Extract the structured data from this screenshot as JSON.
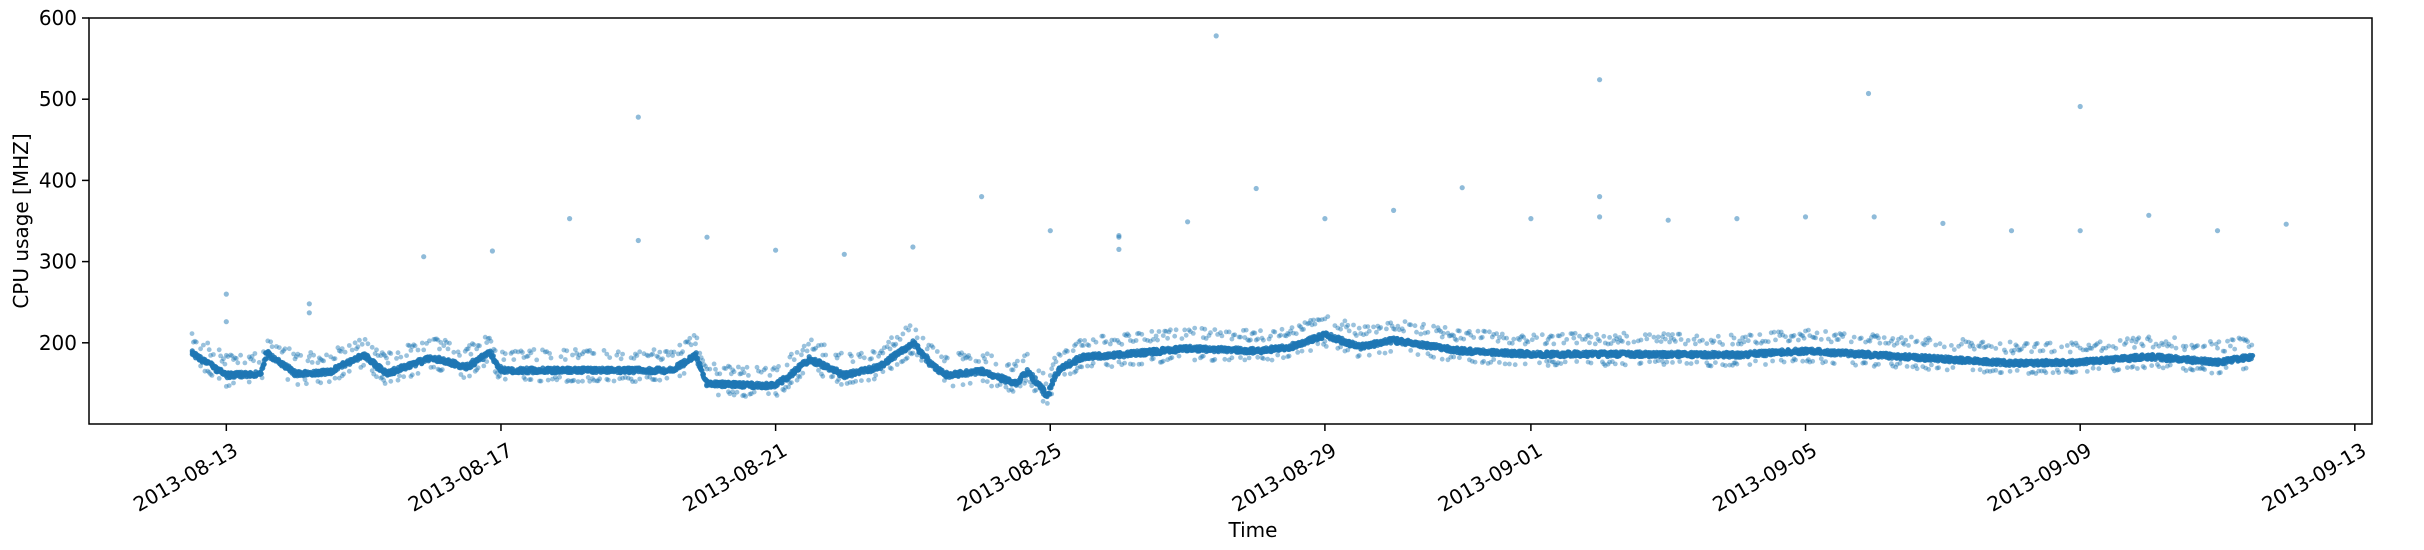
{
  "chart_data": {
    "type": "scatter",
    "title": "",
    "xlabel": "Time",
    "ylabel": "CPU usage [MHZ]",
    "xlim": [
      "2013-08-11T00:00",
      "2013-09-13T06:00"
    ],
    "ylim": [
      100,
      600
    ],
    "grid": false,
    "legend": "none",
    "x_ticks": [
      "2013-08-13",
      "2013-08-17",
      "2013-08-21",
      "2013-08-25",
      "2013-08-29",
      "2013-09-01",
      "2013-09-05",
      "2013-09-09",
      "2013-09-13"
    ],
    "y_ticks": [
      200,
      300,
      400,
      500,
      600
    ],
    "marker_color": "#1f77b4",
    "baseline_series": [
      [
        "2013-08-12T12:00",
        187
      ],
      [
        "2013-08-13T00:00",
        160
      ],
      [
        "2013-08-13T12:00",
        162
      ],
      [
        "2013-08-13T14:00",
        188
      ],
      [
        "2013-08-14T00:00",
        162
      ],
      [
        "2013-08-14T12:00",
        164
      ],
      [
        "2013-08-15T00:00",
        185
      ],
      [
        "2013-08-15T08:00",
        162
      ],
      [
        "2013-08-16T00:00",
        182
      ],
      [
        "2013-08-16T12:00",
        170
      ],
      [
        "2013-08-16T20:00",
        188
      ],
      [
        "2013-08-17T00:00",
        166
      ],
      [
        "2013-08-18T00:00",
        166
      ],
      [
        "2013-08-19T00:00",
        166
      ],
      [
        "2013-08-19T12:00",
        166
      ],
      [
        "2013-08-19T20:00",
        185
      ],
      [
        "2013-08-20T00:00",
        150
      ],
      [
        "2013-08-20T12:00",
        148
      ],
      [
        "2013-08-21T00:00",
        147
      ],
      [
        "2013-08-21T12:00",
        180
      ],
      [
        "2013-08-22T00:00",
        160
      ],
      [
        "2013-08-22T12:00",
        170
      ],
      [
        "2013-08-23T00:00",
        200
      ],
      [
        "2013-08-23T06:00",
        175
      ],
      [
        "2013-08-23T12:00",
        160
      ],
      [
        "2013-08-24T00:00",
        165
      ],
      [
        "2013-08-24T12:00",
        150
      ],
      [
        "2013-08-24T16:00",
        165
      ],
      [
        "2013-08-24T23:00",
        135
      ],
      [
        "2013-08-25T03:00",
        168
      ],
      [
        "2013-08-25T12:00",
        183
      ],
      [
        "2013-08-26T00:00",
        185
      ],
      [
        "2013-08-27T00:00",
        193
      ],
      [
        "2013-08-28T00:00",
        190
      ],
      [
        "2013-08-28T12:00",
        195
      ],
      [
        "2013-08-29T00:00",
        210
      ],
      [
        "2013-08-29T12:00",
        195
      ],
      [
        "2013-08-30T00:00",
        203
      ],
      [
        "2013-08-31T00:00",
        190
      ],
      [
        "2013-09-01T00:00",
        186
      ],
      [
        "2013-09-02T00:00",
        186
      ],
      [
        "2013-09-03T00:00",
        186
      ],
      [
        "2013-09-04T00:00",
        185
      ],
      [
        "2013-09-05T00:00",
        190
      ],
      [
        "2013-09-06T00:00",
        185
      ],
      [
        "2013-09-07T00:00",
        180
      ],
      [
        "2013-09-08T00:00",
        175
      ],
      [
        "2013-09-09T00:00",
        176
      ],
      [
        "2013-09-10T00:00",
        183
      ],
      [
        "2013-09-11T00:00",
        176
      ],
      [
        "2013-09-11T12:00",
        183
      ]
    ],
    "outliers": [
      [
        "2013-08-13T00:00",
        260
      ],
      [
        "2013-08-13T00:00",
        226
      ],
      [
        "2013-08-14T05:00",
        248
      ],
      [
        "2013-08-14T05:00",
        237
      ],
      [
        "2013-08-15T21:00",
        306
      ],
      [
        "2013-08-16T21:00",
        313
      ],
      [
        "2013-08-18T00:00",
        353
      ],
      [
        "2013-08-19T00:00",
        478
      ],
      [
        "2013-08-19T00:00",
        326
      ],
      [
        "2013-08-20T00:00",
        330
      ],
      [
        "2013-08-21T00:00",
        314
      ],
      [
        "2013-08-22T00:00",
        309
      ],
      [
        "2013-08-23T00:00",
        318
      ],
      [
        "2013-08-24T00:00",
        380
      ],
      [
        "2013-08-25T00:00",
        338
      ],
      [
        "2013-08-26T00:00",
        332
      ],
      [
        "2013-08-26T00:00",
        330
      ],
      [
        "2013-08-26T00:00",
        315
      ],
      [
        "2013-08-27T00:00",
        349
      ],
      [
        "2013-08-27T10:00",
        578
      ],
      [
        "2013-08-28T00:00",
        390
      ],
      [
        "2013-08-29T00:00",
        353
      ],
      [
        "2013-08-30T00:00",
        363
      ],
      [
        "2013-08-31T00:00",
        391
      ],
      [
        "2013-09-01T00:00",
        353
      ],
      [
        "2013-09-02T00:00",
        524
      ],
      [
        "2013-09-02T00:00",
        380
      ],
      [
        "2013-09-02T00:00",
        355
      ],
      [
        "2013-09-03T00:00",
        351
      ],
      [
        "2013-09-04T00:00",
        353
      ],
      [
        "2013-09-05T00:00",
        355
      ],
      [
        "2013-09-05T22:00",
        507
      ],
      [
        "2013-09-06T00:00",
        355
      ],
      [
        "2013-09-07T00:00",
        347
      ],
      [
        "2013-09-08T00:00",
        338
      ],
      [
        "2013-09-09T00:00",
        491
      ],
      [
        "2013-09-09T00:00",
        338
      ],
      [
        "2013-09-10T00:00",
        357
      ],
      [
        "2013-09-11T00:00",
        338
      ],
      [
        "2013-09-12T00:00",
        346
      ]
    ]
  }
}
